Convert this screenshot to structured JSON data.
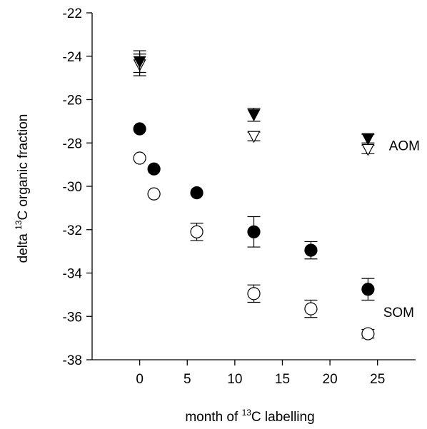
{
  "chart_data": {
    "type": "scatter",
    "title": "",
    "xlabel": {
      "prefix": "month of ",
      "sup": "13",
      "suffix": "C labelling"
    },
    "ylabel": {
      "prefix": "delta ",
      "sup": "13",
      "suffix": "C organic fraction"
    },
    "xlim": [
      -5,
      29
    ],
    "ylim": [
      -38,
      -22
    ],
    "xticks": [
      0,
      5,
      10,
      15,
      20,
      25
    ],
    "yticks": [
      -22,
      -24,
      -26,
      -28,
      -30,
      -32,
      -34,
      -36,
      -38
    ],
    "grid": false,
    "annotations": [
      {
        "text": "AOM",
        "x": 26.2,
        "y": -28.1
      },
      {
        "text": "SOM",
        "x": 25.6,
        "y": -35.8
      }
    ],
    "series": [
      {
        "marker": "filled-circle",
        "points": [
          {
            "x": 0,
            "y": -27.35,
            "err": 0
          },
          {
            "x": 1.5,
            "y": -29.2,
            "err": 0
          },
          {
            "x": 6,
            "y": -30.3,
            "err": 0
          },
          {
            "x": 12,
            "y": -32.1,
            "err": 0.7
          },
          {
            "x": 18,
            "y": -32.95,
            "err": 0.4
          },
          {
            "x": 24,
            "y": -34.75,
            "err": 0.5
          }
        ]
      },
      {
        "marker": "open-circle",
        "points": [
          {
            "x": 0,
            "y": -28.7,
            "err": 0
          },
          {
            "x": 1.5,
            "y": -30.35,
            "err": 0
          },
          {
            "x": 6,
            "y": -32.1,
            "err": 0.4
          },
          {
            "x": 12,
            "y": -34.95,
            "err": 0.4
          },
          {
            "x": 18,
            "y": -35.65,
            "err": 0.4
          },
          {
            "x": 24,
            "y": -36.8,
            "err": 0.2
          }
        ]
      },
      {
        "marker": "filled-triangle-down",
        "points": [
          {
            "x": 0,
            "y": -24.25,
            "err": 0.5
          },
          {
            "x": 12,
            "y": -26.7,
            "err": 0.3
          },
          {
            "x": 24,
            "y": -27.8,
            "err": 0.2
          }
        ]
      },
      {
        "marker": "open-triangle-down",
        "points": [
          {
            "x": 0,
            "y": -24.4,
            "err": 0.5
          },
          {
            "x": 12,
            "y": -27.7,
            "err": 0.2
          },
          {
            "x": 24,
            "y": -28.3,
            "err": 0.2
          }
        ]
      }
    ]
  }
}
